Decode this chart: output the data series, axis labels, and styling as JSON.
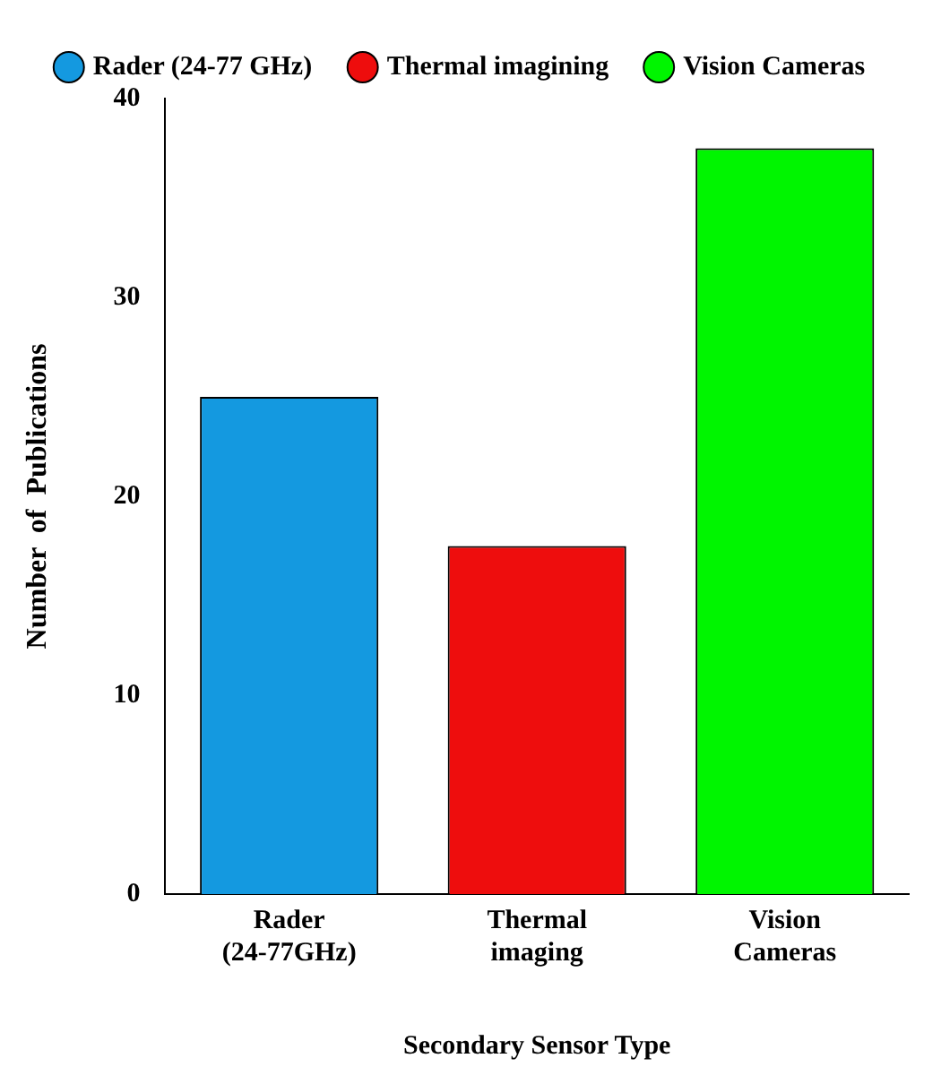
{
  "chart_data": {
    "type": "bar",
    "xlabel": "Secondary Sensor Type",
    "ylabel": "Number  of  Publications",
    "categories": [
      "Rader (24-77GHz)",
      "Thermal imaging",
      "Vision Cameras"
    ],
    "series": [
      {
        "name": "Rader (24-77 GHz)",
        "color": "#1499e0",
        "values": [
          25,
          null,
          null
        ]
      },
      {
        "name": "Thermal imagining",
        "color": "#ee0d0d",
        "values": [
          null,
          17.5,
          null
        ]
      },
      {
        "name": "Vision Cameras",
        "color": "#00f500",
        "values": [
          null,
          null,
          37.5
        ]
      }
    ],
    "ylim": [
      0,
      40
    ],
    "yticks": [
      0,
      10,
      20,
      30,
      40
    ],
    "grid": false,
    "legend": "top"
  }
}
